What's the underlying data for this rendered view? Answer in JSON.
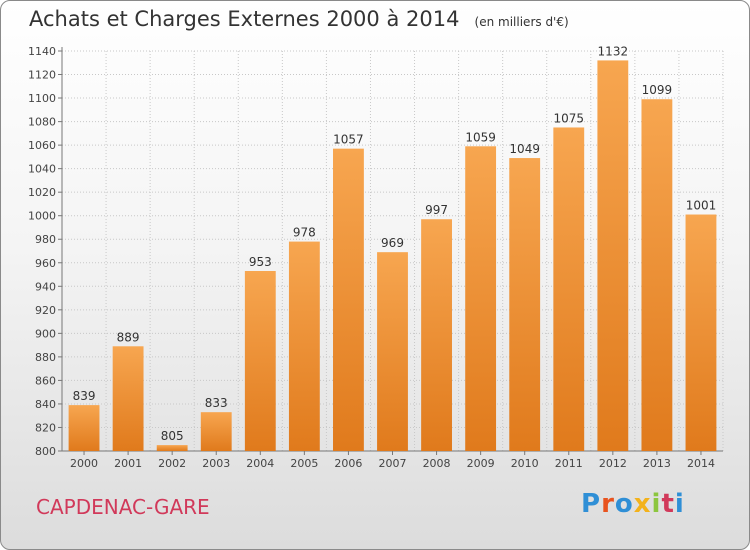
{
  "header": {
    "title": "Achats et Charges Externes 2000 à 2014",
    "unit": "(en milliers d'€)"
  },
  "footer": {
    "commune": "CAPDENAC-GARE",
    "brand": "Proxiti"
  },
  "colors": {
    "bar_top": "#f7a650",
    "bar_bottom": "#e07a1c",
    "commune_text": "#d1395a"
  },
  "chart_data": {
    "type": "bar",
    "title": "Achats et Charges Externes 2000 à 2014",
    "subtitle": "(en milliers d'€)",
    "categories": [
      "2000",
      "2001",
      "2002",
      "2003",
      "2004",
      "2005",
      "2006",
      "2007",
      "2008",
      "2009",
      "2010",
      "2011",
      "2012",
      "2013",
      "2014"
    ],
    "values": [
      839,
      889,
      805,
      833,
      953,
      978,
      1057,
      969,
      997,
      1059,
      1049,
      1075,
      1132,
      1099,
      1001
    ],
    "ylim": [
      800,
      1140
    ],
    "ytick_step": 20,
    "grid": true,
    "legend": "none",
    "data_labels": true
  }
}
